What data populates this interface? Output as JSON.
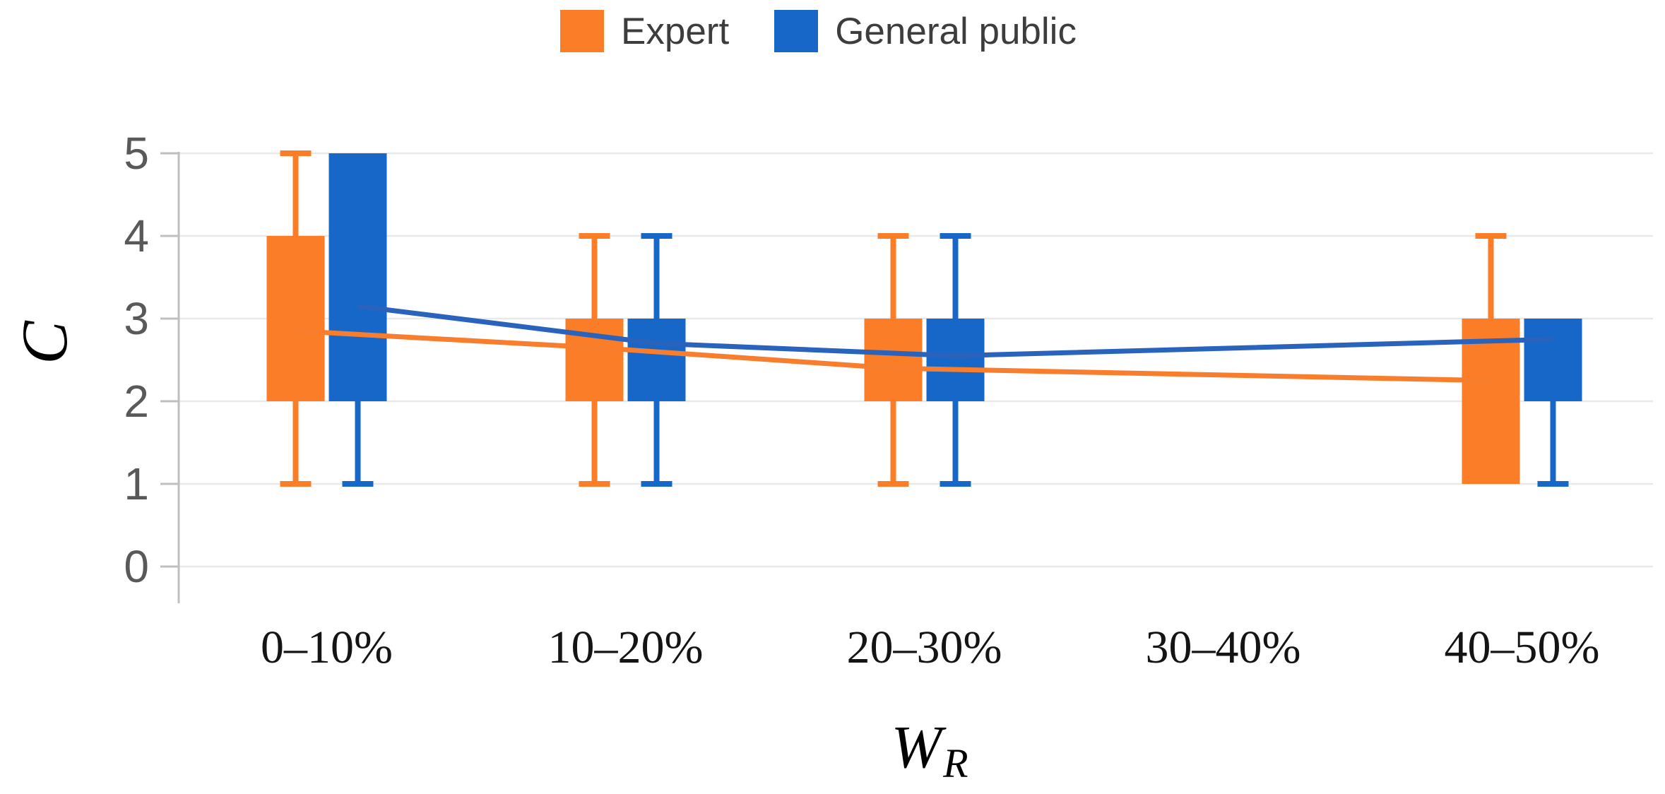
{
  "legend": {
    "items": [
      {
        "label": "Expert",
        "color": "#FB7D28"
      },
      {
        "label": "General public",
        "color": "#1767C8"
      }
    ]
  },
  "colors": {
    "background": "#FFFFFF",
    "grid": "#E9E9E9",
    "axis": "#BFBFBF",
    "tick_label": "#595959",
    "category_label": "#141414",
    "legend_text": "#3D3D3D"
  },
  "chart_data": {
    "type": "box",
    "title": "",
    "categories": [
      "0–10%",
      "10–20%",
      "20–30%",
      "30–40%",
      "40–50%"
    ],
    "xlabel_main": "W",
    "xlabel_sub": "R",
    "ylabel": "C",
    "ylim": [
      0,
      5
    ],
    "yticks": [
      0,
      1,
      2,
      3,
      4,
      5
    ],
    "grid": "horizontal",
    "legend_position": "top",
    "series": [
      {
        "name": "Expert",
        "color": "#FB7D28",
        "line_color": "#F87E2D",
        "boxes": [
          {
            "q1": 2,
            "q3": 4,
            "whisker_low": 1,
            "whisker_high": 5
          },
          {
            "q1": 2,
            "q3": 3,
            "whisker_low": 1,
            "whisker_high": 4
          },
          {
            "q1": 2,
            "q3": 3,
            "whisker_low": 1,
            "whisker_high": 4
          },
          null,
          {
            "q1": 1,
            "q3": 3,
            "whisker_low": null,
            "whisker_high": 4
          }
        ],
        "means": [
          2.85,
          2.65,
          2.4,
          null,
          2.25
        ]
      },
      {
        "name": "General public",
        "color": "#1767C8",
        "line_color": "#2A63BC",
        "boxes": [
          {
            "q1": 2,
            "q3": 5,
            "whisker_low": 1,
            "whisker_high": null
          },
          {
            "q1": 2,
            "q3": 3,
            "whisker_low": 1,
            "whisker_high": 4
          },
          {
            "q1": 2,
            "q3": 3,
            "whisker_low": 1,
            "whisker_high": 4
          },
          null,
          {
            "q1": 2,
            "q3": 3,
            "whisker_low": 1,
            "whisker_high": null
          }
        ],
        "means": [
          3.15,
          2.7,
          2.55,
          null,
          2.75
        ]
      }
    ]
  }
}
